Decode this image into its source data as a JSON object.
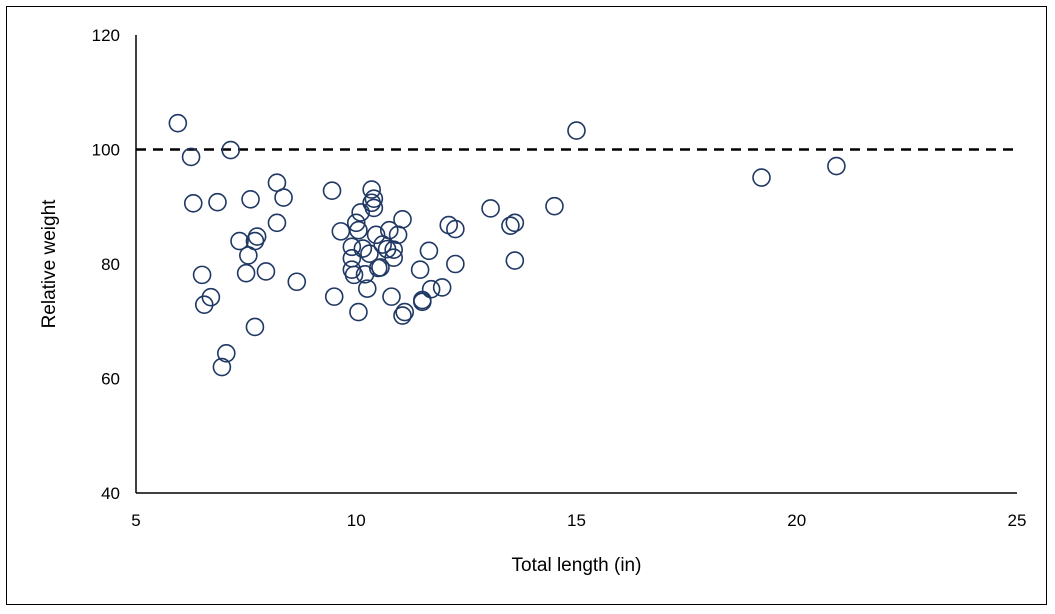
{
  "chart_data": {
    "type": "scatter",
    "xlabel": "Total length (in)",
    "ylabel": "Relative weight",
    "xlim": [
      5,
      25
    ],
    "ylim": [
      40,
      120
    ],
    "x_ticks": [
      "5",
      "10",
      "15",
      "20",
      "25"
    ],
    "y_ticks": [
      "40",
      "60",
      "80",
      "100",
      "120"
    ],
    "x_tick_values": [
      5,
      10,
      15,
      20,
      25
    ],
    "y_tick_values": [
      40,
      60,
      80,
      100,
      120
    ],
    "grid": false,
    "legend": "none",
    "reference_line": {
      "y": 100,
      "style": "dashed",
      "color": "#000000"
    },
    "marker": {
      "shape": "open-circle",
      "color": "#1f3864"
    },
    "points": [
      [
        5.95,
        104.6
      ],
      [
        6.25,
        98.7
      ],
      [
        6.3,
        90.6
      ],
      [
        6.5,
        78.1
      ],
      [
        6.55,
        72.9
      ],
      [
        6.7,
        74.2
      ],
      [
        6.85,
        90.8
      ],
      [
        6.95,
        62.0
      ],
      [
        7.05,
        64.4
      ],
      [
        7.15,
        99.9
      ],
      [
        7.35,
        84.0
      ],
      [
        7.5,
        78.4
      ],
      [
        7.55,
        81.5
      ],
      [
        7.6,
        91.3
      ],
      [
        7.7,
        69.0
      ],
      [
        7.7,
        84.0
      ],
      [
        7.75,
        84.8
      ],
      [
        7.95,
        78.7
      ],
      [
        8.2,
        94.2
      ],
      [
        8.2,
        87.2
      ],
      [
        8.35,
        91.6
      ],
      [
        8.65,
        76.9
      ],
      [
        9.45,
        92.8
      ],
      [
        9.5,
        74.3
      ],
      [
        9.65,
        85.7
      ],
      [
        9.9,
        83.0
      ],
      [
        9.9,
        81.0
      ],
      [
        9.9,
        79.0
      ],
      [
        9.95,
        78.1
      ],
      [
        10.0,
        87.2
      ],
      [
        10.05,
        85.9
      ],
      [
        10.05,
        71.6
      ],
      [
        10.1,
        89.0
      ],
      [
        10.15,
        82.7
      ],
      [
        10.2,
        78.2
      ],
      [
        10.25,
        75.7
      ],
      [
        10.3,
        81.8
      ],
      [
        10.35,
        90.7
      ],
      [
        10.35,
        93.0
      ],
      [
        10.4,
        89.8
      ],
      [
        10.4,
        91.4
      ],
      [
        10.45,
        85.1
      ],
      [
        10.5,
        79.3
      ],
      [
        10.55,
        79.4
      ],
      [
        10.6,
        83.4
      ],
      [
        10.7,
        82.6
      ],
      [
        10.75,
        85.9
      ],
      [
        10.8,
        74.3
      ],
      [
        10.85,
        82.5
      ],
      [
        10.85,
        81.1
      ],
      [
        10.95,
        85.1
      ],
      [
        11.05,
        87.8
      ],
      [
        11.05,
        71.0
      ],
      [
        11.1,
        71.6
      ],
      [
        11.45,
        79.0
      ],
      [
        11.5,
        73.4
      ],
      [
        11.5,
        73.7
      ],
      [
        11.65,
        82.3
      ],
      [
        11.7,
        75.6
      ],
      [
        11.95,
        75.9
      ],
      [
        12.1,
        86.8
      ],
      [
        12.25,
        86.1
      ],
      [
        12.25,
        80.0
      ],
      [
        13.05,
        89.7
      ],
      [
        13.5,
        86.7
      ],
      [
        13.6,
        87.2
      ],
      [
        13.6,
        80.6
      ],
      [
        14.5,
        90.1
      ],
      [
        15.0,
        103.3
      ],
      [
        19.2,
        95.1
      ],
      [
        20.9,
        97.1
      ]
    ]
  }
}
